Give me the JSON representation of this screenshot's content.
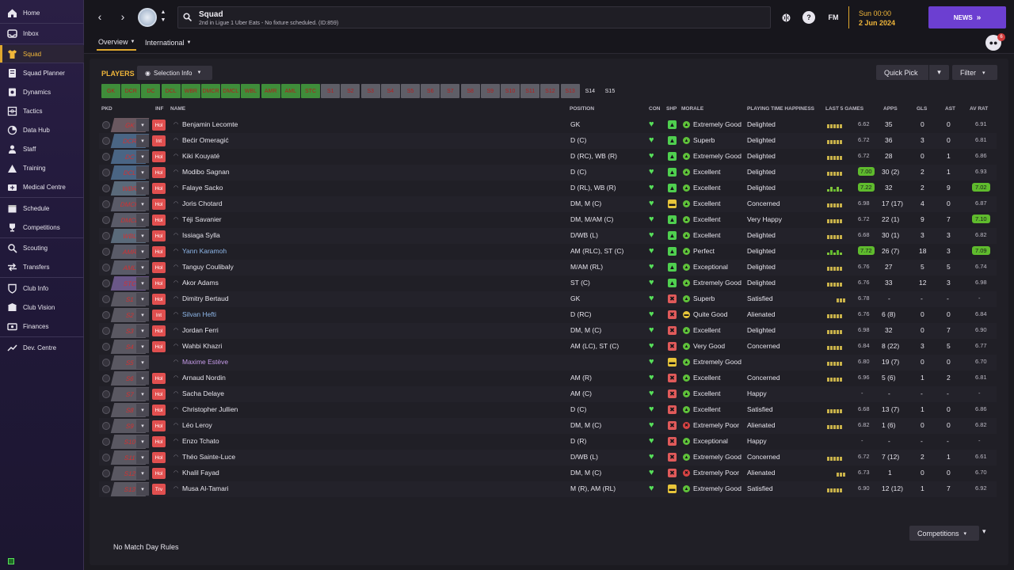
{
  "sidebar": {
    "items": [
      {
        "label": "Home",
        "icon": "home-icon",
        "active": false
      },
      {
        "label": "Inbox",
        "icon": "inbox-icon",
        "active": false
      },
      {
        "label": "Squad",
        "icon": "shirt-icon",
        "active": true
      },
      {
        "label": "Squad Planner",
        "icon": "planner-icon",
        "active": false
      },
      {
        "label": "Dynamics",
        "icon": "dynamics-icon",
        "active": false
      },
      {
        "label": "Tactics",
        "icon": "tactics-icon",
        "active": false
      },
      {
        "label": "Data Hub",
        "icon": "data-hub-icon",
        "active": false
      },
      {
        "label": "Staff",
        "icon": "staff-icon",
        "active": false
      },
      {
        "label": "Training",
        "icon": "training-icon",
        "active": false
      },
      {
        "label": "Medical Centre",
        "icon": "medical-icon",
        "active": false
      },
      {
        "label": "Schedule",
        "icon": "schedule-icon",
        "active": false
      },
      {
        "label": "Competitions",
        "icon": "trophy-icon",
        "active": false
      },
      {
        "label": "Scouting",
        "icon": "scouting-icon",
        "active": false
      },
      {
        "label": "Transfers",
        "icon": "transfers-icon",
        "active": false
      },
      {
        "label": "Club Info",
        "icon": "club-info-icon",
        "active": false
      },
      {
        "label": "Club Vision",
        "icon": "club-vision-icon",
        "active": false
      },
      {
        "label": "Finances",
        "icon": "finances-icon",
        "active": false
      },
      {
        "label": "Dev. Centre",
        "icon": "dev-centre-icon",
        "active": false
      }
    ]
  },
  "header": {
    "title": "Squad",
    "subtitle": "2nd in Ligue 1 Uber Eats - No fixture scheduled. (ID:859)",
    "fm_label": "FM",
    "date_time": "Sun 00:00",
    "date": "2 Jun 2024",
    "news_label": "NEWS",
    "notification_count": "6",
    "tabs": [
      {
        "label": "Overview"
      },
      {
        "label": "International"
      }
    ]
  },
  "toolbar": {
    "players_label": "PLAYERS",
    "selection_info_label": "Selection Info",
    "quick_pick_label": "Quick Pick",
    "filter_label": "Filter"
  },
  "positions": [
    "GK",
    "DCR",
    "DC",
    "DCL",
    "WBR",
    "DMCR",
    "DMCL",
    "WBL",
    "AMR",
    "AML",
    "STC",
    "S1",
    "S2",
    "S3",
    "S4",
    "S5",
    "S6",
    "S7",
    "S8",
    "S9",
    "S10",
    "S11",
    "S12",
    "S13",
    "S14",
    "S15"
  ],
  "columns": {
    "pkd": "PKD",
    "inf": "INF",
    "name": "NAME",
    "position": "POSITION",
    "con": "CON",
    "shp": "SHP",
    "morale": "MORALE",
    "happiness": "PLAYING TIME HAPPINESS",
    "last5": "LAST 5 GAMES",
    "apps": "APPS",
    "gls": "GLS",
    "ast": "AST",
    "avrat": "AV RAT"
  },
  "players": [
    {
      "slot": "GK",
      "inf": "Hol",
      "name": "Benjamin Lecomte",
      "position": "GK",
      "morale": "Extremely Good",
      "happiness": "Delighted",
      "last5": "6.62",
      "apps": "35",
      "gls": "0",
      "ast": "0",
      "avrat": "6.91"
    },
    {
      "slot": "DCR",
      "inf": "Int",
      "name": "Bećir Omeragić",
      "position": "D (C)",
      "morale": "Superb",
      "happiness": "Delighted",
      "last5": "6.72",
      "apps": "36",
      "gls": "3",
      "ast": "0",
      "avrat": "6.81"
    },
    {
      "slot": "DC",
      "inf": "Hol",
      "name": "Kiki Kouyaté",
      "position": "D (RC), WB (R)",
      "morale": "Extremely Good",
      "happiness": "Delighted",
      "last5": "6.72",
      "apps": "28",
      "gls": "0",
      "ast": "1",
      "avrat": "6.86"
    },
    {
      "slot": "DCL",
      "inf": "Hol",
      "name": "Modibo Sagnan",
      "position": "D (C)",
      "morale": "Excellent",
      "happiness": "Delighted",
      "last5": "7.00",
      "apps": "30 (2)",
      "gls": "2",
      "ast": "1",
      "avrat": "6.93"
    },
    {
      "slot": "WBR",
      "inf": "Hol",
      "name": "Falaye Sacko",
      "position": "D (RL), WB (R)",
      "morale": "Excellent",
      "happiness": "Delighted",
      "last5": "7.22",
      "apps": "32",
      "gls": "2",
      "ast": "9",
      "avrat": "7.02"
    },
    {
      "slot": "DMCR",
      "inf": "Hol",
      "name": "Joris Chotard",
      "position": "DM, M (C)",
      "morale": "Excellent",
      "happiness": "Concerned",
      "last5": "6.98",
      "apps": "17 (17)",
      "gls": "4",
      "ast": "0",
      "avrat": "6.87"
    },
    {
      "slot": "DMCL",
      "inf": "Hol",
      "name": "Téji Savanier",
      "position": "DM, M/AM (C)",
      "morale": "Excellent",
      "happiness": "Very Happy",
      "last5": "6.72",
      "apps": "22 (1)",
      "gls": "9",
      "ast": "7",
      "avrat": "7.10"
    },
    {
      "slot": "WBL",
      "inf": "Hol",
      "name": "Issiaga Sylla",
      "position": "D/WB (L)",
      "morale": "Excellent",
      "happiness": "Delighted",
      "last5": "6.68",
      "apps": "30 (1)",
      "gls": "3",
      "ast": "3",
      "avrat": "6.82"
    },
    {
      "slot": "AMR",
      "inf": "Hol",
      "name": "Yann Karamoh",
      "position": "AM (RLC), ST (C)",
      "morale": "Perfect",
      "happiness": "Delighted",
      "last5": "7.72",
      "apps": "26 (7)",
      "gls": "18",
      "ast": "3",
      "avrat": "7.09"
    },
    {
      "slot": "AML",
      "inf": "Hol",
      "name": "Tanguy Coulibaly",
      "position": "M/AM (RL)",
      "morale": "Exceptional",
      "happiness": "Delighted",
      "last5": "6.76",
      "apps": "27",
      "gls": "5",
      "ast": "5",
      "avrat": "6.74"
    },
    {
      "slot": "STC",
      "inf": "Hol",
      "name": "Akor Adams",
      "position": "ST (C)",
      "morale": "Extremely Good",
      "happiness": "Delighted",
      "last5": "6.76",
      "apps": "33",
      "gls": "12",
      "ast": "3",
      "avrat": "6.98"
    },
    {
      "slot": "S1",
      "inf": "Hol",
      "name": "Dimitry Bertaud",
      "position": "GK",
      "morale": "Superb",
      "happiness": "Satisfied",
      "last5": "6.78",
      "apps": "-",
      "gls": "-",
      "ast": "-",
      "avrat": "-"
    },
    {
      "slot": "S2",
      "inf": "Int",
      "name": "Silvan Hefti",
      "position": "D (RC)",
      "morale": "Quite Good",
      "happiness": "Alienated",
      "last5": "6.76",
      "apps": "6 (8)",
      "gls": "0",
      "ast": "0",
      "avrat": "6.84"
    },
    {
      "slot": "S3",
      "inf": "Hol",
      "name": "Jordan Ferri",
      "position": "DM, M (C)",
      "morale": "Excellent",
      "happiness": "Delighted",
      "last5": "6.98",
      "apps": "32",
      "gls": "0",
      "ast": "7",
      "avrat": "6.90"
    },
    {
      "slot": "S4",
      "inf": "Hol",
      "name": "Wahbi Khazri",
      "position": "AM (LC), ST (C)",
      "morale": "Very Good",
      "happiness": "Concerned",
      "last5": "6.84",
      "apps": "8 (22)",
      "gls": "3",
      "ast": "5",
      "avrat": "6.77"
    },
    {
      "slot": "S5",
      "inf": "",
      "name": "Maxime Estève",
      "position": "",
      "morale": "Extremely Good",
      "happiness": "",
      "last5": "6.80",
      "apps": "19 (7)",
      "gls": "0",
      "ast": "0",
      "avrat": "6.70"
    },
    {
      "slot": "S6",
      "inf": "Hol",
      "name": "Arnaud Nordin",
      "position": "AM (R)",
      "morale": "Excellent",
      "happiness": "Concerned",
      "last5": "6.96",
      "apps": "5 (6)",
      "gls": "1",
      "ast": "2",
      "avrat": "6.81"
    },
    {
      "slot": "S7",
      "inf": "Hol",
      "name": "Sacha Delaye",
      "position": "AM (C)",
      "morale": "Excellent",
      "happiness": "Happy",
      "last5": "-",
      "apps": "-",
      "gls": "-",
      "ast": "-",
      "avrat": "-"
    },
    {
      "slot": "S8",
      "inf": "Hol",
      "name": "Christopher Jullien",
      "position": "D (C)",
      "morale": "Excellent",
      "happiness": "Satisfied",
      "last5": "6.68",
      "apps": "13 (7)",
      "gls": "1",
      "ast": "0",
      "avrat": "6.86"
    },
    {
      "slot": "S9",
      "inf": "Hol",
      "name": "Léo Leroy",
      "position": "DM, M (C)",
      "morale": "Extremely Poor",
      "happiness": "Alienated",
      "last5": "6.82",
      "apps": "1 (6)",
      "gls": "0",
      "ast": "0",
      "avrat": "6.82"
    },
    {
      "slot": "S10",
      "inf": "Hol",
      "name": "Enzo Tchato",
      "position": "D (R)",
      "morale": "Exceptional",
      "happiness": "Happy",
      "last5": "-",
      "apps": "-",
      "gls": "-",
      "ast": "-",
      "avrat": "-"
    },
    {
      "slot": "S11",
      "inf": "Hol",
      "name": "Théo Sainte-Luce",
      "position": "D/WB (L)",
      "morale": "Extremely Good",
      "happiness": "Concerned",
      "last5": "6.72",
      "apps": "7 (12)",
      "gls": "2",
      "ast": "1",
      "avrat": "6.61"
    },
    {
      "slot": "S12",
      "inf": "Hol",
      "name": "Khalil Fayad",
      "position": "DM, M (C)",
      "morale": "Extremely Poor",
      "happiness": "Alienated",
      "last5": "6.73",
      "apps": "1",
      "gls": "0",
      "ast": "0",
      "avrat": "6.70"
    },
    {
      "slot": "S13",
      "inf": "Trv",
      "name": "Musa Al-Tamari",
      "position": "M (R), AM (RL)",
      "morale": "Extremely Good",
      "happiness": "Satisfied",
      "last5": "6.90",
      "apps": "12 (12)",
      "gls": "1",
      "ast": "7",
      "avrat": "6.92"
    }
  ],
  "footer": {
    "no_match_rules": "No Match Day Rules",
    "competitions_label": "Competitions"
  },
  "colors": {
    "accent": "#f0b63a",
    "news": "#6c3fd1",
    "position_green": "#3f8d3a",
    "good_green": "#57e05a"
  }
}
